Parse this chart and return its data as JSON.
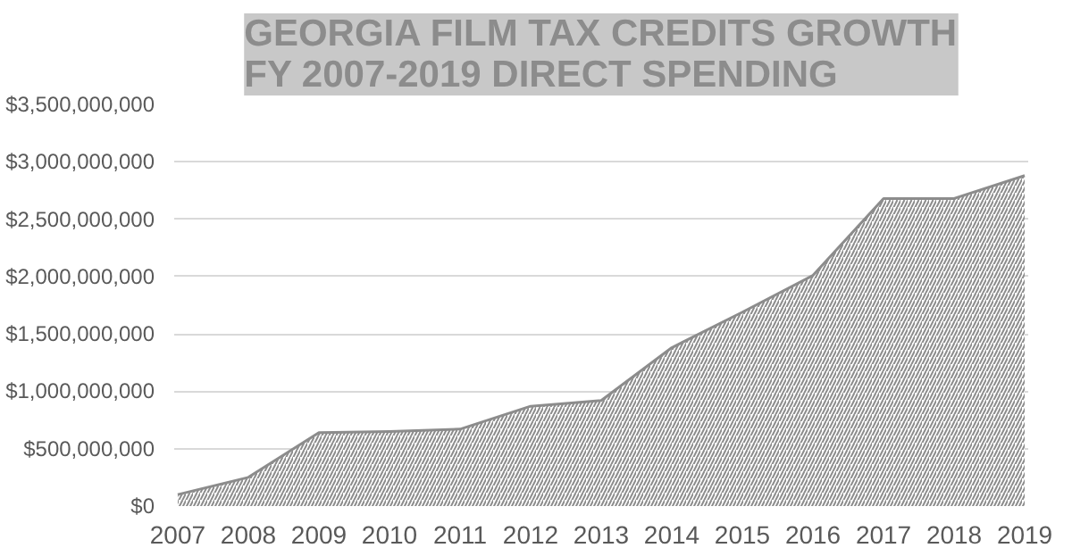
{
  "chart_data": {
    "type": "area",
    "title": "GEORGIA FILM TAX CREDITS GROWTH\nFY 2007-2019 DIRECT SPENDING",
    "categories": [
      "2007",
      "2008",
      "2009",
      "2010",
      "2011",
      "2012",
      "2013",
      "2014",
      "2015",
      "2016",
      "2017",
      "2018",
      "2019"
    ],
    "values": [
      100000000,
      250000000,
      640000000,
      650000000,
      670000000,
      870000000,
      920000000,
      1380000000,
      1690000000,
      2010000000,
      2680000000,
      2680000000,
      2880000000
    ],
    "color": "#8c8c8c",
    "ylim": [
      0,
      3500000000
    ],
    "yticks": [
      {
        "value": 0,
        "label": "$0"
      },
      {
        "value": 500000000,
        "label": "$500,000,000"
      },
      {
        "value": 1000000000,
        "label": "$1,000,000,000"
      },
      {
        "value": 1500000000,
        "label": "$1,500,000,000"
      },
      {
        "value": 2000000000,
        "label": "$2,000,000,000"
      },
      {
        "value": 2500000000,
        "label": "$2,500,000,000"
      },
      {
        "value": 3000000000,
        "label": "$3,000,000,000"
      },
      {
        "value": 3500000000,
        "label": "$3,500,000,000"
      }
    ],
    "grid": "y"
  }
}
